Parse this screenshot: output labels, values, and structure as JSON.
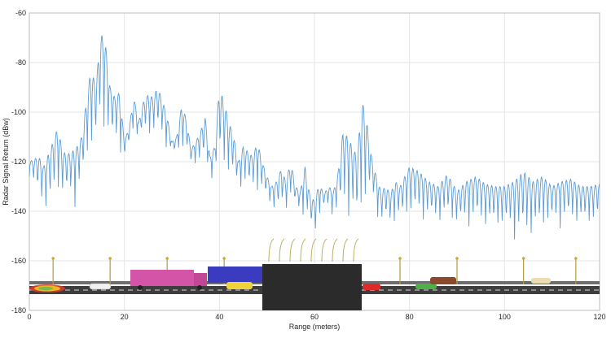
{
  "chart_data": {
    "type": "line",
    "title": "",
    "xlabel": "Range (meters)",
    "ylabel": "Radar Signal Return (dBw)",
    "xlim": [
      0,
      120
    ],
    "ylim": [
      -180,
      -60
    ],
    "xticks": [
      "0",
      "20",
      "40",
      "60",
      "80",
      "100",
      "120"
    ],
    "yticks": [
      "-60",
      "-80",
      "-100",
      "-120",
      "-140",
      "-160",
      "-180"
    ],
    "grid": true,
    "line_color": "#5b9bd5",
    "envelope": {
      "x": [
        0,
        2,
        3,
        4,
        5,
        6,
        7,
        8,
        9,
        10,
        11,
        12,
        13,
        14,
        15,
        16,
        17,
        18,
        19,
        20,
        21,
        22,
        23,
        24,
        25,
        26,
        27,
        28,
        29,
        30,
        31,
        32,
        33,
        34,
        35,
        36,
        37,
        38,
        39,
        40,
        41,
        42,
        43,
        44,
        45,
        46,
        47,
        48,
        49,
        50,
        51,
        52,
        53,
        54,
        55,
        56,
        57,
        58,
        59,
        60,
        61,
        62,
        63,
        64,
        65,
        66,
        67,
        68,
        69,
        70,
        71,
        72,
        73,
        74,
        75,
        76,
        77,
        78,
        80,
        82,
        84,
        86,
        88,
        90,
        92,
        94,
        96,
        98,
        100,
        102,
        104,
        106,
        108,
        110,
        112,
        114,
        116,
        118,
        120
      ],
      "y": [
        -120,
        -118,
        -122,
        -117,
        -112,
        -106,
        -116,
        -117,
        -116,
        -114,
        -110,
        -96,
        -82,
        -90,
        -68,
        -72,
        -90,
        -94,
        -92,
        -112,
        -106,
        -94,
        -104,
        -96,
        -93,
        -94,
        -90,
        -95,
        -102,
        -112,
        -110,
        -98,
        -102,
        -115,
        -112,
        -108,
        -102,
        -118,
        -114,
        -90,
        -96,
        -104,
        -110,
        -120,
        -114,
        -116,
        -118,
        -112,
        -120,
        -126,
        -130,
        -128,
        -123,
        -128,
        -120,
        -130,
        -132,
        -122,
        -133,
        -136,
        -129,
        -133,
        -130,
        -132,
        -124,
        -108,
        -110,
        -114,
        -118,
        -95,
        -104,
        -118,
        -126,
        -132,
        -130,
        -133,
        -128,
        -130,
        -122,
        -124,
        -128,
        -130,
        -125,
        -132,
        -128,
        -126,
        -129,
        -130,
        -130,
        -128,
        -124,
        -128,
        -126,
        -130,
        -128,
        -127,
        -130,
        -130,
        -129
      ]
    },
    "ripple_floor": {
      "x": [
        0,
        2,
        4,
        6,
        8,
        10,
        12,
        14,
        20,
        22,
        30,
        36,
        40,
        50,
        52,
        56,
        60,
        62,
        66,
        70,
        72,
        74,
        80,
        84,
        90,
        100,
        104,
        110,
        120
      ],
      "y": [
        -126,
        -140,
        -148,
        -140,
        -140,
        -142,
        -130,
        -120,
        -120,
        -112,
        -118,
        -125,
        -132,
        -138,
        -145,
        -140,
        -155,
        -140,
        -150,
        -156,
        -140,
        -150,
        -148,
        -148,
        -150,
        -152,
        -160,
        -150,
        -150
      ]
    }
  },
  "scene": {
    "description_icons": [
      "truck-pink",
      "truck-blue",
      "car-yellow",
      "car-white",
      "car-red",
      "car-green",
      "car-brown",
      "car-beige",
      "rainbow-radar-beam",
      "dark-obstacle-block",
      "roadside-post"
    ]
  }
}
